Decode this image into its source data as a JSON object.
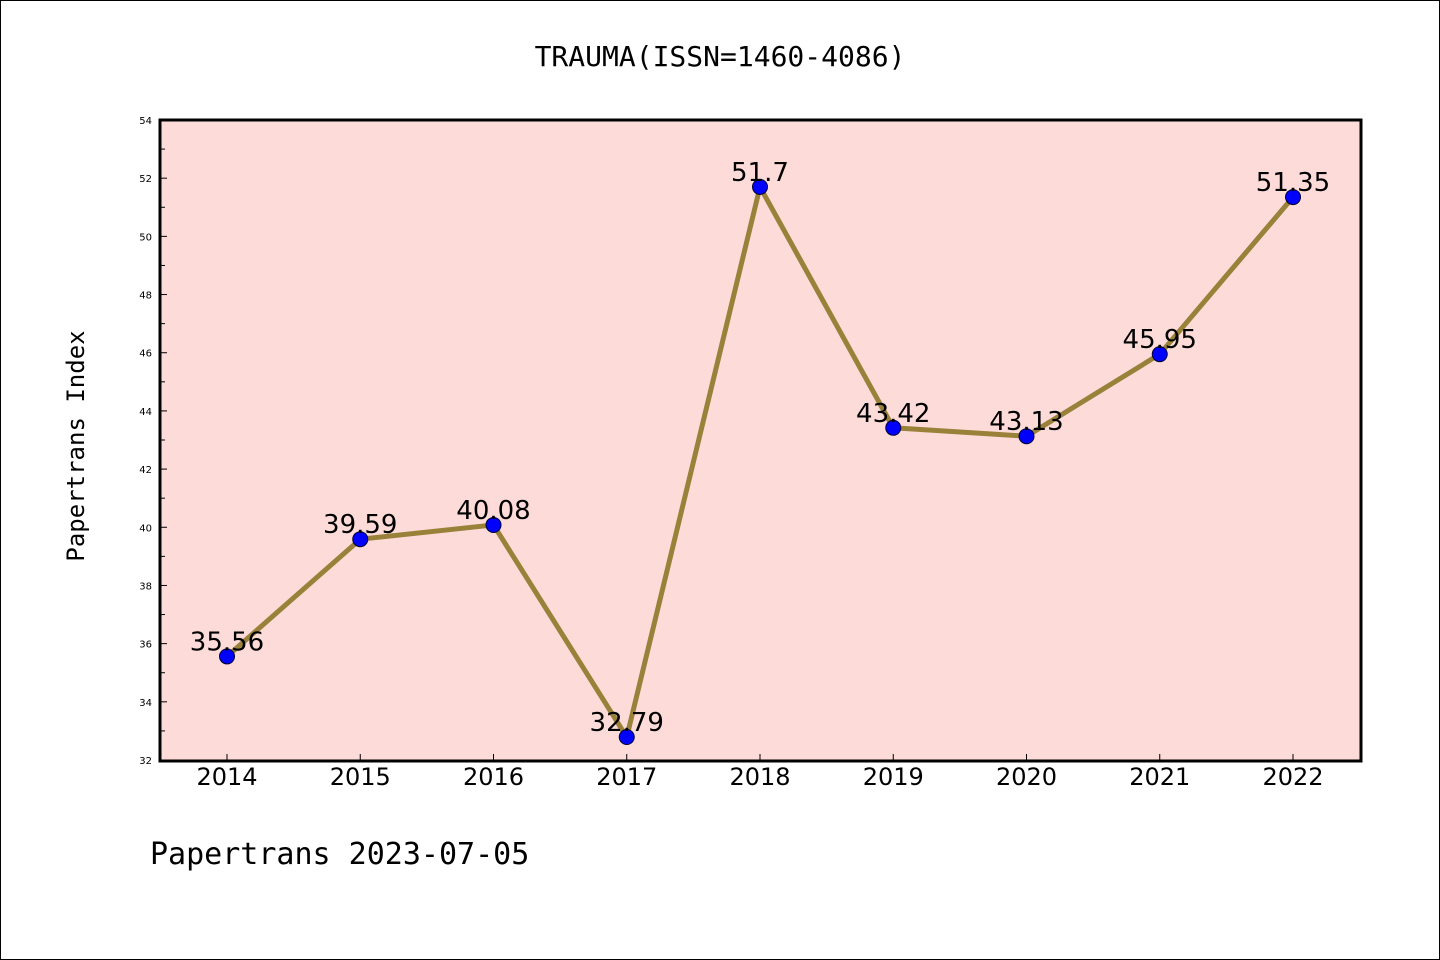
{
  "chart_data": {
    "type": "line",
    "title": "TRAUMA(ISSN=1460-4086)",
    "xlabel": "",
    "ylabel": "Papertrans Index",
    "categories": [
      "2014",
      "2015",
      "2016",
      "2017",
      "2018",
      "2019",
      "2020",
      "2021",
      "2022"
    ],
    "series": [
      {
        "values": [
          35.56,
          39.59,
          40.08,
          32.79,
          51.7,
          43.42,
          43.13,
          45.95,
          51.35
        ],
        "data_labels": [
          "35.56",
          "39.59",
          "40.08",
          "32.79",
          "51.7",
          "43.42",
          "43.13",
          "45.95",
          "51.35"
        ]
      }
    ],
    "ylim": [
      32,
      54
    ],
    "yticks": [
      32,
      34,
      36,
      38,
      40,
      42,
      44,
      46,
      48,
      50,
      52,
      54
    ],
    "grid": false,
    "legend": "none",
    "colors": {
      "plot_background": "#fddbd9",
      "line": "#9a8139",
      "marker": "#0000ff",
      "axes": "#000000"
    }
  },
  "footer": {
    "text": "Papertrans 2023-07-05"
  }
}
